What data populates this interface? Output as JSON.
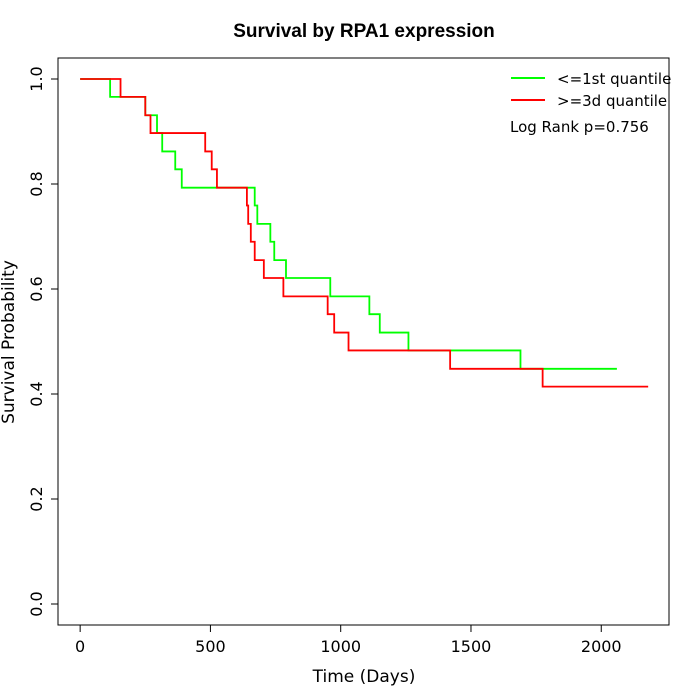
{
  "chart_data": {
    "type": "line",
    "title": "Survival by RPA1 expression",
    "xlabel": "Time (Days)",
    "ylabel": "Survival Probability",
    "xlim": [
      -85,
      2260
    ],
    "ylim": [
      -0.04,
      1.04
    ],
    "x_ticks": [
      0,
      500,
      1000,
      1500,
      2000
    ],
    "x_tick_labels": [
      "0",
      "500",
      "1000",
      "1500",
      "2000"
    ],
    "y_ticks": [
      0.0,
      0.2,
      0.4,
      0.6,
      0.8,
      1.0
    ],
    "y_tick_labels": [
      "0.0",
      "0.2",
      "0.4",
      "0.6",
      "0.8",
      "1.0"
    ],
    "grid": false,
    "legend_position": "top-right",
    "annotation": "Log Rank p=0.756",
    "series": [
      {
        "name": "<=1st quantile",
        "color": "#00ff00",
        "step": true,
        "points": [
          [
            0,
            1.0
          ],
          [
            115,
            0.966
          ],
          [
            250,
            0.931
          ],
          [
            295,
            0.897
          ],
          [
            315,
            0.862
          ],
          [
            365,
            0.828
          ],
          [
            390,
            0.793
          ],
          [
            670,
            0.759
          ],
          [
            680,
            0.724
          ],
          [
            730,
            0.69
          ],
          [
            745,
            0.655
          ],
          [
            790,
            0.621
          ],
          [
            960,
            0.586
          ],
          [
            1110,
            0.552
          ],
          [
            1150,
            0.517
          ],
          [
            1260,
            0.483
          ],
          [
            1690,
            0.448
          ],
          [
            2060,
            0.448
          ]
        ]
      },
      {
        "name": ">=3d quantile",
        "color": "#ff0000",
        "step": true,
        "points": [
          [
            0,
            1.0
          ],
          [
            155,
            0.966
          ],
          [
            250,
            0.931
          ],
          [
            270,
            0.897
          ],
          [
            480,
            0.862
          ],
          [
            505,
            0.828
          ],
          [
            525,
            0.793
          ],
          [
            640,
            0.759
          ],
          [
            645,
            0.724
          ],
          [
            655,
            0.69
          ],
          [
            670,
            0.655
          ],
          [
            705,
            0.621
          ],
          [
            780,
            0.586
          ],
          [
            950,
            0.552
          ],
          [
            975,
            0.517
          ],
          [
            1030,
            0.483
          ],
          [
            1420,
            0.448
          ],
          [
            1775,
            0.414
          ],
          [
            2180,
            0.414
          ]
        ]
      }
    ]
  }
}
